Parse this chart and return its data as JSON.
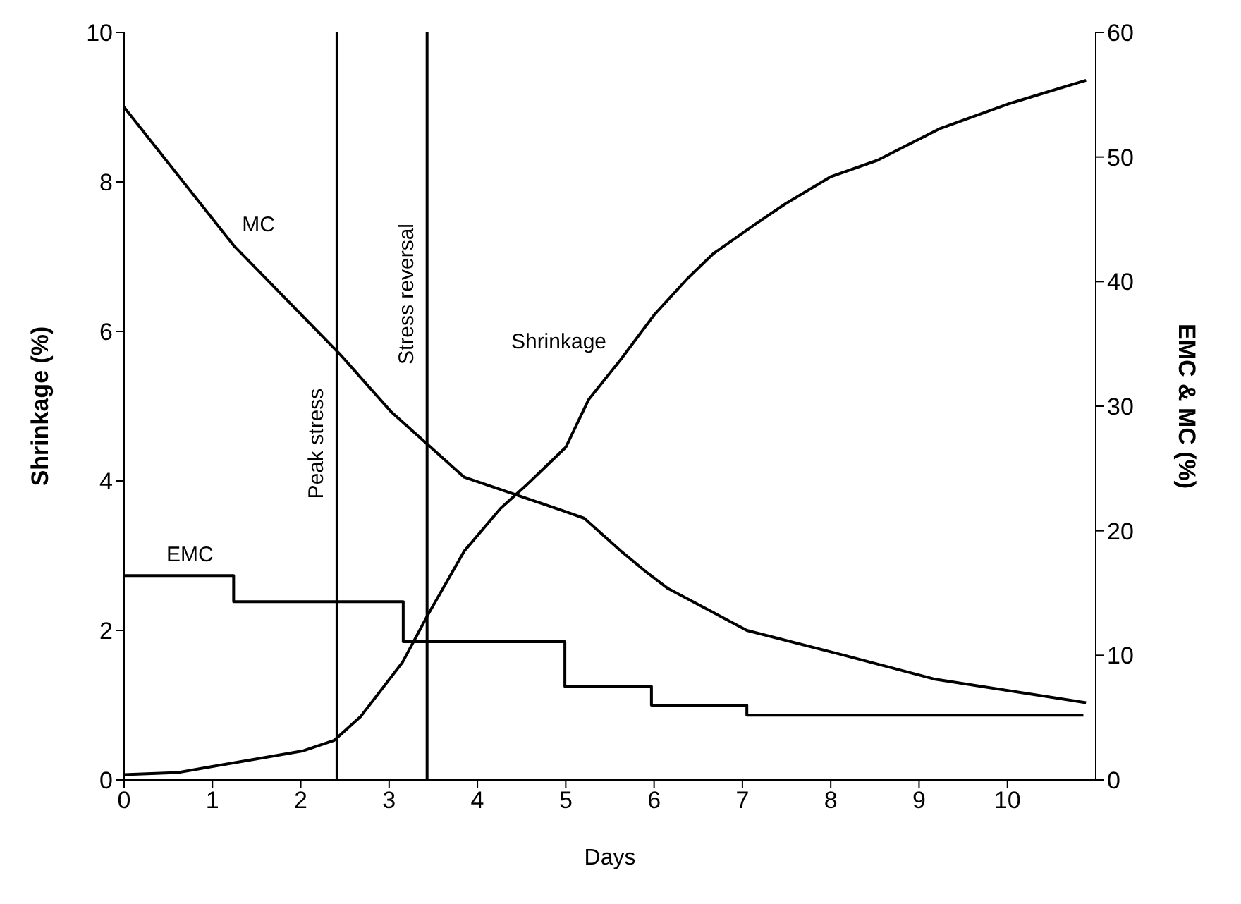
{
  "chart_data": {
    "type": "line",
    "xlabel": "Days",
    "ylabel": "Shrinkage (%)",
    "y2label": "EMC & MC (%)",
    "xlim": [
      0,
      11
    ],
    "xticks": [
      0,
      1,
      2,
      3,
      4,
      5,
      6,
      7,
      8,
      9,
      10
    ],
    "ylim": [
      0,
      10
    ],
    "yticks": [
      0,
      2,
      4,
      6,
      8,
      10
    ],
    "y2lim": [
      0,
      60
    ],
    "y2ticks": [
      0,
      10,
      20,
      30,
      40,
      50,
      60
    ],
    "grid": false,
    "legend": false,
    "marker": "none",
    "line_style": "solid",
    "series": [
      {
        "name": "MC",
        "axis": "y2",
        "color": "#000000",
        "x": [
          0,
          1.24,
          2.44,
          3.03,
          3.44,
          3.85,
          4.97,
          5.21,
          5.62,
          5.91,
          6.15,
          7.05,
          8.1,
          9.17,
          10.89
        ],
        "values": [
          54,
          42.9,
          34.2,
          29.5,
          26.9,
          24.3,
          21.6,
          21,
          18.4,
          16.7,
          15.4,
          12,
          10.1,
          8.1,
          6.2
        ]
      },
      {
        "name": "EMC",
        "type": "step",
        "axis": "y2",
        "color": "#000000",
        "x": [
          0,
          1.24,
          3.16,
          4.99,
          5.97,
          7.05,
          10.86
        ],
        "values": [
          16.4,
          14.3,
          11.1,
          7.5,
          6,
          5.2,
          5.2
        ]
      },
      {
        "name": "Shrinkage",
        "color": "#000000",
        "x": [
          0,
          0.62,
          1,
          1.5,
          2.03,
          2.38,
          2.68,
          3.15,
          3.44,
          3.85,
          4.26,
          4.56,
          5,
          5.26,
          5.62,
          6,
          6.38,
          6.67,
          7.14,
          7.49,
          8,
          8.53,
          9.23,
          10,
          10.89
        ],
        "values": [
          0.07,
          0.1,
          0.18,
          0.28,
          0.39,
          0.53,
          0.85,
          1.57,
          2.21,
          3.06,
          3.63,
          3.95,
          4.45,
          5.09,
          5.62,
          6.22,
          6.71,
          7.04,
          7.43,
          7.71,
          8.07,
          8.29,
          8.71,
          9.04,
          9.36
        ]
      }
    ],
    "ref_lines": [
      {
        "axis": "x",
        "value": 2.41,
        "label": "Peak stress",
        "color": "#000000"
      },
      {
        "axis": "x",
        "value": 3.43,
        "label": "Stress reversal",
        "color": "#000000"
      }
    ]
  }
}
